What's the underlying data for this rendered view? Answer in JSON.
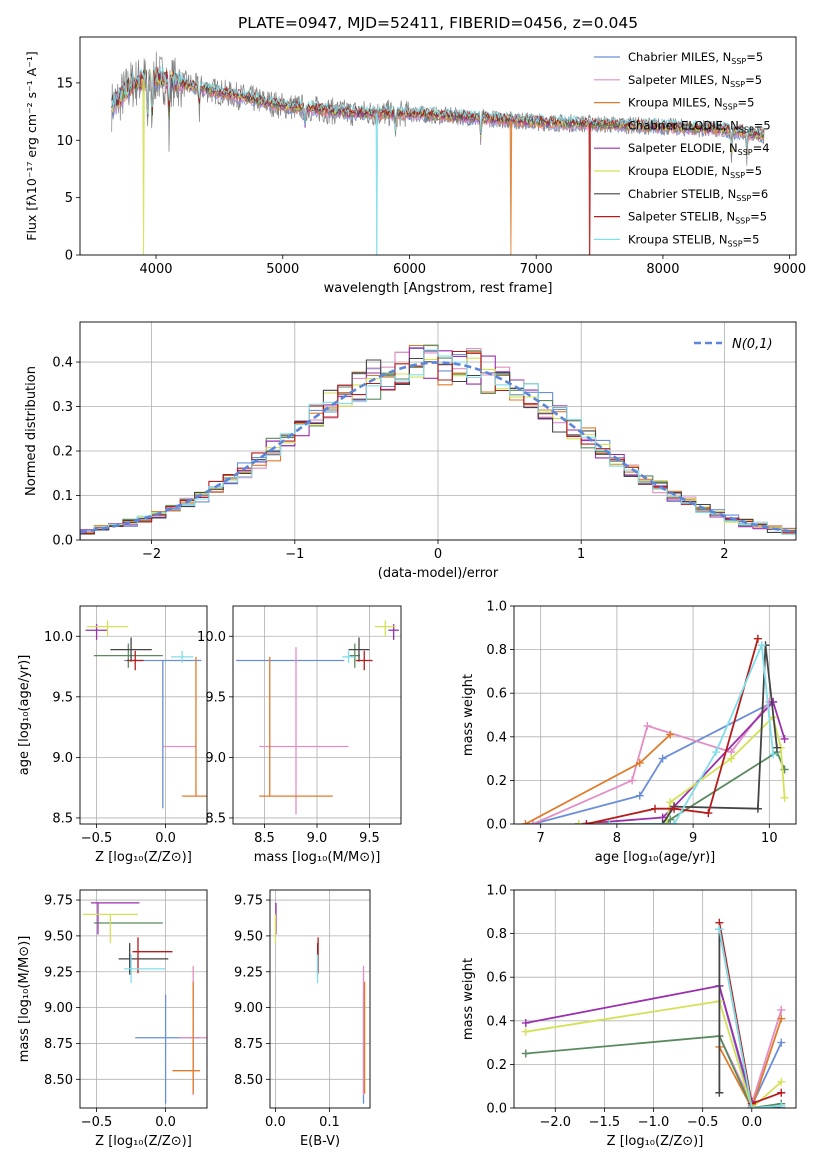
{
  "chart_data": [
    {
      "id": "spectrum",
      "type": "line",
      "title": "PLATE=0947, MJD=52411, FIBERID=0456, z=0.045",
      "xlabel": "wavelength [Angstrom, rest frame]",
      "ylabel": "Flux [fλ10⁻¹⁷ erg cm⁻² s⁻¹ A⁻¹]",
      "xlim": [
        3400,
        9050
      ],
      "ylim": [
        0,
        19
      ],
      "xticks": [
        4000,
        5000,
        6000,
        7000,
        8000,
        9000
      ],
      "yticks": [
        0,
        5,
        10,
        15
      ],
      "grid": false,
      "legend_position": "top-right",
      "observed_color": "#808080",
      "anchors": {
        "x": [
          3650,
          3700,
          3800,
          3900,
          4000,
          4100,
          4300,
          4500,
          4800,
          5000,
          5200,
          5500,
          6000,
          6500,
          7000,
          7500,
          8000,
          8500,
          8800
        ],
        "y": [
          13,
          13.5,
          14.8,
          15.3,
          15.5,
          15.2,
          14.7,
          14.2,
          13.5,
          13.0,
          12.8,
          12.4,
          12.3,
          12.0,
          11.6,
          11.4,
          11.2,
          10.9,
          10.4
        ]
      },
      "dips": [
        3934,
        3969,
        4102,
        4341,
        5175,
        5890,
        6563,
        8542,
        8662
      ],
      "drops": [
        {
          "series": "Kroupa ELODIE",
          "x": 3900
        },
        {
          "series": "Kroupa STELIB",
          "x": 5740
        },
        {
          "series": "Kroupa MILES",
          "x": 6800
        },
        {
          "series": "Salpeter STELIB",
          "x": 7420
        }
      ],
      "series": [
        {
          "name": "Chabrier MILES",
          "nssp": "5",
          "color": "#6a8fd8"
        },
        {
          "name": "Salpeter MILES",
          "nssp": "5",
          "color": "#e38ec4"
        },
        {
          "name": "Kroupa MILES",
          "nssp": "5",
          "color": "#e07b2b"
        },
        {
          "name": "Chabrier ELODIE",
          "nssp": "5",
          "color": "#5a8a5e"
        },
        {
          "name": "Salpeter ELODIE",
          "nssp": "4",
          "color": "#9b2fae"
        },
        {
          "name": "Kroupa ELODIE",
          "nssp": "5",
          "color": "#d4e157"
        },
        {
          "name": "Chabrier STELIB",
          "nssp": "6",
          "color": "#444444"
        },
        {
          "name": "Salpeter STELIB",
          "nssp": "5",
          "color": "#b71c1c"
        },
        {
          "name": "Kroupa STELIB",
          "nssp": "5",
          "color": "#80deea"
        }
      ]
    },
    {
      "id": "residuals",
      "type": "histogram",
      "xlabel": "(data-model)/error",
      "ylabel": "Normed distribution",
      "xlim": [
        -2.5,
        2.5
      ],
      "ylim": [
        0,
        0.49
      ],
      "xticks": [
        -2,
        -1,
        0,
        1,
        2
      ],
      "yticks": [
        0,
        0.1,
        0.2,
        0.3,
        0.4
      ],
      "grid": true,
      "legend_position": "top-right",
      "reference": {
        "label": "N(0,1)",
        "mean": 0,
        "sigma": 1,
        "color": "#5b86d9"
      },
      "bin_width": 0.1
    },
    {
      "id": "age-vs-Z",
      "type": "errorbar",
      "xlabel": "Z [log₁₀(Z/Z⊙)]",
      "ylabel": "age  [log₁₀(age/yr)]",
      "xlim": [
        -0.62,
        0.3
      ],
      "ylim": [
        8.45,
        10.25
      ],
      "xticks": [
        -0.5,
        0.0
      ],
      "yticks": [
        8.5,
        9.0,
        9.5,
        10.0
      ],
      "grid": true,
      "points": [
        {
          "series": "Chabrier MILES",
          "x": -0.02,
          "y": 9.8,
          "xerr": [
            0.28,
            0.28
          ],
          "yerr": [
            1.22,
            0.0
          ]
        },
        {
          "series": "Salpeter MILES",
          "x": 0.1,
          "y": 9.09,
          "xerr": [
            0.12,
            0.12
          ],
          "yerr": [
            0.0,
            0.0
          ]
        },
        {
          "series": "Kroupa MILES",
          "x": 0.22,
          "y": 8.68,
          "xerr": [
            0.1,
            0.1
          ],
          "yerr": [
            0.0,
            1.15
          ]
        },
        {
          "series": "Chabrier ELODIE",
          "x": -0.27,
          "y": 9.84,
          "xerr": [
            0.25,
            0.25
          ],
          "yerr": [
            0.1,
            0.1
          ]
        },
        {
          "series": "Salpeter ELODIE",
          "x": -0.5,
          "y": 10.05,
          "xerr": [
            0.08,
            0.08
          ],
          "yerr": [
            0.08,
            0.05
          ]
        },
        {
          "series": "Kroupa ELODIE",
          "x": -0.42,
          "y": 10.08,
          "xerr": [
            0.15,
            0.15
          ],
          "yerr": [
            0.08,
            0.05
          ]
        },
        {
          "series": "Chabrier STELIB",
          "x": -0.25,
          "y": 9.89,
          "xerr": [
            0.15,
            0.15
          ],
          "yerr": [
            0.1,
            0.1
          ]
        },
        {
          "series": "Salpeter STELIB",
          "x": -0.22,
          "y": 9.8,
          "xerr": [
            0.06,
            0.06
          ],
          "yerr": [
            0.08,
            0.08
          ]
        },
        {
          "series": "Kroupa STELIB",
          "x": 0.12,
          "y": 9.83,
          "xerr": [
            0.08,
            0.08
          ],
          "yerr": [
            0.05,
            0.05
          ]
        }
      ]
    },
    {
      "id": "age-vs-mass",
      "type": "errorbar",
      "xlabel": "mass [log₁₀(M/M⊙)]",
      "ylabel": "",
      "xlim": [
        8.2,
        9.8
      ],
      "ylim": [
        8.45,
        10.25
      ],
      "xticks": [
        8.5,
        9.0,
        9.5
      ],
      "yticks": [
        8.5,
        9.0,
        9.5,
        10.0
      ],
      "grid": true,
      "points": [
        {
          "series": "Chabrier MILES",
          "x": 8.78,
          "y": 9.8,
          "xerr": [
            0.55,
            0.48
          ],
          "yerr": [
            0.0,
            0.0
          ]
        },
        {
          "series": "Salpeter MILES",
          "x": 8.8,
          "y": 9.09,
          "xerr": [
            0.35,
            0.5
          ],
          "yerr": [
            0.56,
            0.82
          ]
        },
        {
          "series": "Kroupa MILES",
          "x": 8.55,
          "y": 8.68,
          "xerr": [
            0.1,
            0.6
          ],
          "yerr": [
            0.0,
            1.15
          ]
        },
        {
          "series": "Chabrier ELODIE",
          "x": 9.36,
          "y": 9.84,
          "xerr": [
            0.05,
            0.05
          ],
          "yerr": [
            0.1,
            0.1
          ]
        },
        {
          "series": "Salpeter ELODIE",
          "x": 9.73,
          "y": 10.05,
          "xerr": [
            0.05,
            0.05
          ],
          "yerr": [
            0.08,
            0.05
          ]
        },
        {
          "series": "Kroupa ELODIE",
          "x": 9.65,
          "y": 10.08,
          "xerr": [
            0.1,
            0.1
          ],
          "yerr": [
            0.08,
            0.05
          ]
        },
        {
          "series": "Chabrier STELIB",
          "x": 9.4,
          "y": 9.89,
          "xerr": [
            0.1,
            0.1
          ],
          "yerr": [
            0.1,
            0.1
          ]
        },
        {
          "series": "Salpeter STELIB",
          "x": 9.45,
          "y": 9.8,
          "xerr": [
            0.08,
            0.08
          ],
          "yerr": [
            0.08,
            0.08
          ]
        },
        {
          "series": "Kroupa STELIB",
          "x": 9.3,
          "y": 9.83,
          "xerr": [
            0.06,
            0.06
          ],
          "yerr": [
            0.05,
            0.05
          ]
        }
      ]
    },
    {
      "id": "massweight-vs-age",
      "type": "line",
      "xlabel": "age  [log₁₀(age/yr)]",
      "ylabel": "mass weight",
      "xlim": [
        6.65,
        10.35
      ],
      "ylim": [
        0,
        1.0
      ],
      "xticks": [
        7,
        8,
        9,
        10
      ],
      "yticks": [
        0.0,
        0.2,
        0.4,
        0.6,
        0.8,
        1.0
      ],
      "grid": true,
      "series": [
        {
          "name": "Chabrier MILES",
          "x": [
            6.9,
            8.3,
            8.6,
            10.05
          ],
          "y": [
            0.0,
            0.13,
            0.3,
            0.56
          ]
        },
        {
          "name": "Salpeter MILES",
          "x": [
            6.9,
            8.2,
            8.4,
            9.5,
            10.0
          ],
          "y": [
            0.0,
            0.2,
            0.45,
            0.33,
            0.56
          ]
        },
        {
          "name": "Kroupa MILES",
          "x": [
            6.8,
            8.3,
            8.7
          ],
          "y": [
            0.0,
            0.28,
            0.41
          ]
        },
        {
          "name": "Chabrier ELODIE",
          "x": [
            7.5,
            8.65,
            8.7,
            10.1,
            10.2
          ],
          "y": [
            0.0,
            0.0,
            0.02,
            0.33,
            0.25
          ]
        },
        {
          "name": "Salpeter ELODIE",
          "x": [
            7.5,
            8.6,
            8.75,
            10.05,
            10.2
          ],
          "y": [
            0.0,
            0.03,
            0.08,
            0.56,
            0.39
          ]
        },
        {
          "name": "Kroupa ELODIE",
          "x": [
            7.5,
            8.65,
            8.7,
            9.5,
            10.05,
            10.15,
            10.2
          ],
          "y": [
            0.0,
            0.0,
            0.1,
            0.3,
            0.49,
            0.35,
            0.12
          ]
        },
        {
          "name": "Chabrier STELIB",
          "x": [
            7.9,
            8.6,
            8.75,
            9.85,
            9.95,
            10.1
          ],
          "y": [
            0.0,
            0.0,
            0.08,
            0.07,
            0.82,
            0.35
          ]
        },
        {
          "name": "Salpeter STELIB",
          "x": [
            7.6,
            8.5,
            8.75,
            9.2,
            9.85
          ],
          "y": [
            0.0,
            0.07,
            0.07,
            0.05,
            0.85
          ]
        },
        {
          "name": "Kroupa STELIB",
          "x": [
            7.9,
            8.75,
            9.3,
            9.9,
            10.05
          ],
          "y": [
            0.0,
            0.0,
            0.33,
            0.82,
            0.32
          ]
        }
      ]
    },
    {
      "id": "mass-vs-Z",
      "type": "errorbar",
      "xlabel": "Z [log₁₀(Z/Z⊙)]",
      "ylabel": "mass [log₁₀(M/M⊙)]",
      "xlim": [
        -0.62,
        0.3
      ],
      "ylim": [
        8.3,
        9.82
      ],
      "xticks": [
        -0.5,
        0.0
      ],
      "yticks": [
        8.5,
        8.75,
        9.0,
        9.25,
        9.5,
        9.75
      ],
      "grid": true,
      "points": [
        {
          "series": "Chabrier MILES",
          "x": 0.0,
          "y": 8.79,
          "xerr": [
            0.22,
            0.25
          ],
          "yerr": [
            0.46,
            0.3
          ]
        },
        {
          "series": "Salpeter MILES",
          "x": 0.2,
          "y": 8.79,
          "xerr": [
            0.1,
            0.1
          ],
          "yerr": [
            0.4,
            0.5
          ]
        },
        {
          "series": "Kroupa MILES",
          "x": 0.2,
          "y": 8.56,
          "xerr": [
            0.15,
            0.05
          ],
          "yerr": [
            0.16,
            0.62
          ]
        },
        {
          "series": "Chabrier ELODIE",
          "x": -0.27,
          "y": 9.59,
          "xerr": [
            0.25,
            0.25
          ],
          "yerr": [
            0.0,
            0.0
          ]
        },
        {
          "series": "Salpeter ELODIE",
          "x": -0.49,
          "y": 9.73,
          "xerr": [
            0.05,
            0.3
          ],
          "yerr": [
            0.22,
            0.0
          ]
        },
        {
          "series": "Kroupa ELODIE",
          "x": -0.4,
          "y": 9.65,
          "xerr": [
            0.2,
            0.2
          ],
          "yerr": [
            0.2,
            0.0
          ]
        },
        {
          "series": "Chabrier STELIB",
          "x": -0.26,
          "y": 9.34,
          "xerr": [
            0.08,
            0.28
          ],
          "yerr": [
            0.11,
            0.11
          ]
        },
        {
          "series": "Salpeter STELIB",
          "x": -0.2,
          "y": 9.39,
          "xerr": [
            0.04,
            0.25
          ],
          "yerr": [
            0.15,
            0.1
          ]
        },
        {
          "series": "Kroupa STELIB",
          "x": -0.25,
          "y": 9.27,
          "xerr": [
            0.05,
            0.25
          ],
          "yerr": [
            0.1,
            0.1
          ]
        }
      ]
    },
    {
      "id": "mass-vs-ebv",
      "type": "errorbar",
      "xlabel": "E(B-V)",
      "ylabel": "",
      "xlim": [
        -0.01,
        0.175
      ],
      "ylim": [
        8.3,
        9.82
      ],
      "xticks": [
        0.0,
        0.1
      ],
      "yticks": [
        8.5,
        8.75,
        9.0,
        9.25,
        9.5,
        9.75
      ],
      "grid": true,
      "points": [
        {
          "series": "Chabrier MILES",
          "x": 0.163,
          "y": 8.79,
          "xerr": [
            0,
            0
          ],
          "yerr": [
            0.46,
            0.3
          ]
        },
        {
          "series": "Salpeter MILES",
          "x": 0.163,
          "y": 8.79,
          "xerr": [
            0,
            0
          ],
          "yerr": [
            0.4,
            0.5
          ]
        },
        {
          "series": "Kroupa MILES",
          "x": 0.165,
          "y": 8.56,
          "xerr": [
            0,
            0
          ],
          "yerr": [
            0.16,
            0.62
          ]
        },
        {
          "series": "Salpeter ELODIE",
          "x": 0.001,
          "y": 9.73,
          "xerr": [
            0,
            0
          ],
          "yerr": [
            0.22,
            0.0
          ]
        },
        {
          "series": "Kroupa ELODIE",
          "x": 0.0,
          "y": 9.65,
          "xerr": [
            0,
            0
          ],
          "yerr": [
            0.2,
            0.0
          ]
        },
        {
          "series": "Chabrier STELIB",
          "x": 0.078,
          "y": 9.34,
          "xerr": [
            0,
            0
          ],
          "yerr": [
            0.11,
            0.11
          ]
        },
        {
          "series": "Salpeter STELIB",
          "x": 0.079,
          "y": 9.39,
          "xerr": [
            0,
            0
          ],
          "yerr": [
            0.15,
            0.1
          ]
        },
        {
          "series": "Kroupa STELIB",
          "x": 0.078,
          "y": 9.27,
          "xerr": [
            0,
            0
          ],
          "yerr": [
            0.1,
            0.1
          ]
        }
      ]
    },
    {
      "id": "massweight-vs-Z",
      "type": "line",
      "xlabel": "Z [log₁₀(Z/Z⊙)]",
      "ylabel": "mass weight",
      "xlim": [
        -2.42,
        0.45
      ],
      "ylim": [
        0,
        1.0
      ],
      "xticks": [
        -2.0,
        -1.5,
        -1.0,
        -0.5,
        0.0
      ],
      "yticks": [
        0.0,
        0.2,
        0.4,
        0.6,
        0.8,
        1.0
      ],
      "grid": true,
      "series": [
        {
          "name": "Chabrier MILES",
          "x": [
            -0.33,
            0.0,
            0.3
          ],
          "y": [
            0.56,
            0.01,
            0.3
          ]
        },
        {
          "name": "Salpeter MILES",
          "x": [
            -0.33,
            0.0,
            0.3
          ],
          "y": [
            0.33,
            0.02,
            0.45
          ]
        },
        {
          "name": "Kroupa MILES",
          "x": [
            -0.33,
            0.0,
            0.3
          ],
          "y": [
            0.28,
            0.0,
            0.41
          ]
        },
        {
          "name": "Chabrier ELODIE",
          "x": [
            -2.3,
            -0.33,
            0.0,
            0.3
          ],
          "y": [
            0.25,
            0.33,
            0.0,
            0.02
          ]
        },
        {
          "name": "Salpeter ELODIE",
          "x": [
            -2.3,
            -0.33,
            0.0
          ],
          "y": [
            0.39,
            0.56,
            0.03
          ]
        },
        {
          "name": "Kroupa ELODIE",
          "x": [
            -2.3,
            -0.33,
            0.0,
            0.3
          ],
          "y": [
            0.35,
            0.49,
            0.0,
            0.12
          ]
        },
        {
          "name": "Chabrier STELIB",
          "x": [
            -0.33,
            -0.33,
            0.0,
            0.3
          ],
          "y": [
            0.07,
            0.82,
            0.0,
            0.0
          ]
        },
        {
          "name": "Salpeter STELIB",
          "x": [
            -0.33,
            0.0,
            0.3
          ],
          "y": [
            0.85,
            0.02,
            0.07
          ]
        },
        {
          "name": "Kroupa STELIB",
          "x": [
            -0.33,
            0.0,
            0.3
          ],
          "y": [
            0.82,
            0.0,
            0.01
          ]
        }
      ]
    }
  ]
}
